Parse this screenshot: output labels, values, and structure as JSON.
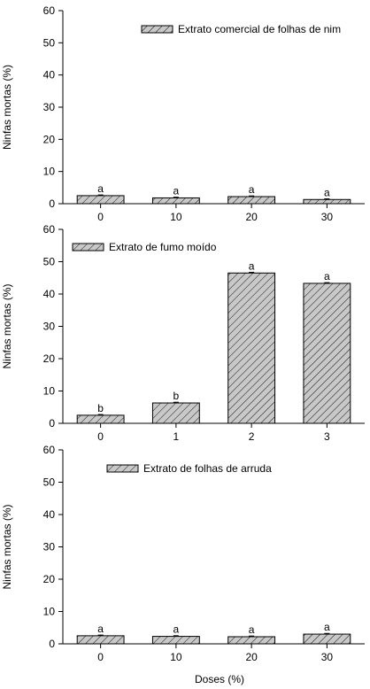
{
  "chart_data": [
    {
      "type": "bar",
      "legend": "Extrato comercial de folhas de nim",
      "legend_position": "top-right",
      "ylabel": "Ninfas mortas (%)",
      "categories": [
        "0",
        "10",
        "20",
        "30"
      ],
      "values": [
        2.5,
        1.8,
        2.2,
        1.3
      ],
      "bar_labels": [
        "a",
        "a",
        "a",
        "a"
      ],
      "ylim": [
        0,
        60
      ],
      "yticks": [
        0,
        10,
        20,
        30,
        40,
        50,
        60
      ]
    },
    {
      "type": "bar",
      "legend": "Extrato de fumo moído",
      "legend_position": "top-left",
      "ylabel": "Ninfas mortas (%)",
      "categories": [
        "0",
        "1",
        "2",
        "3"
      ],
      "values": [
        2.5,
        6.3,
        46.5,
        43.3
      ],
      "bar_labels": [
        "b",
        "b",
        "a",
        "a"
      ],
      "ylim": [
        0,
        60
      ],
      "yticks": [
        0,
        10,
        20,
        30,
        40,
        50,
        60
      ]
    },
    {
      "type": "bar",
      "legend": "Extrato de folhas de arruda",
      "legend_position": "top-left",
      "ylabel": "Ninfas mortas (%)",
      "categories": [
        "0",
        "10",
        "20",
        "30"
      ],
      "values": [
        2.5,
        2.3,
        2.2,
        3.0
      ],
      "bar_labels": [
        "a",
        "a",
        "a",
        "a"
      ],
      "ylim": [
        0,
        60
      ],
      "yticks": [
        0,
        10,
        20,
        30,
        40,
        50,
        60
      ]
    }
  ],
  "xlabel": "Doses (%)",
  "colors": {
    "bar_fill": "#c8c8c8",
    "hatch": "#000000"
  }
}
